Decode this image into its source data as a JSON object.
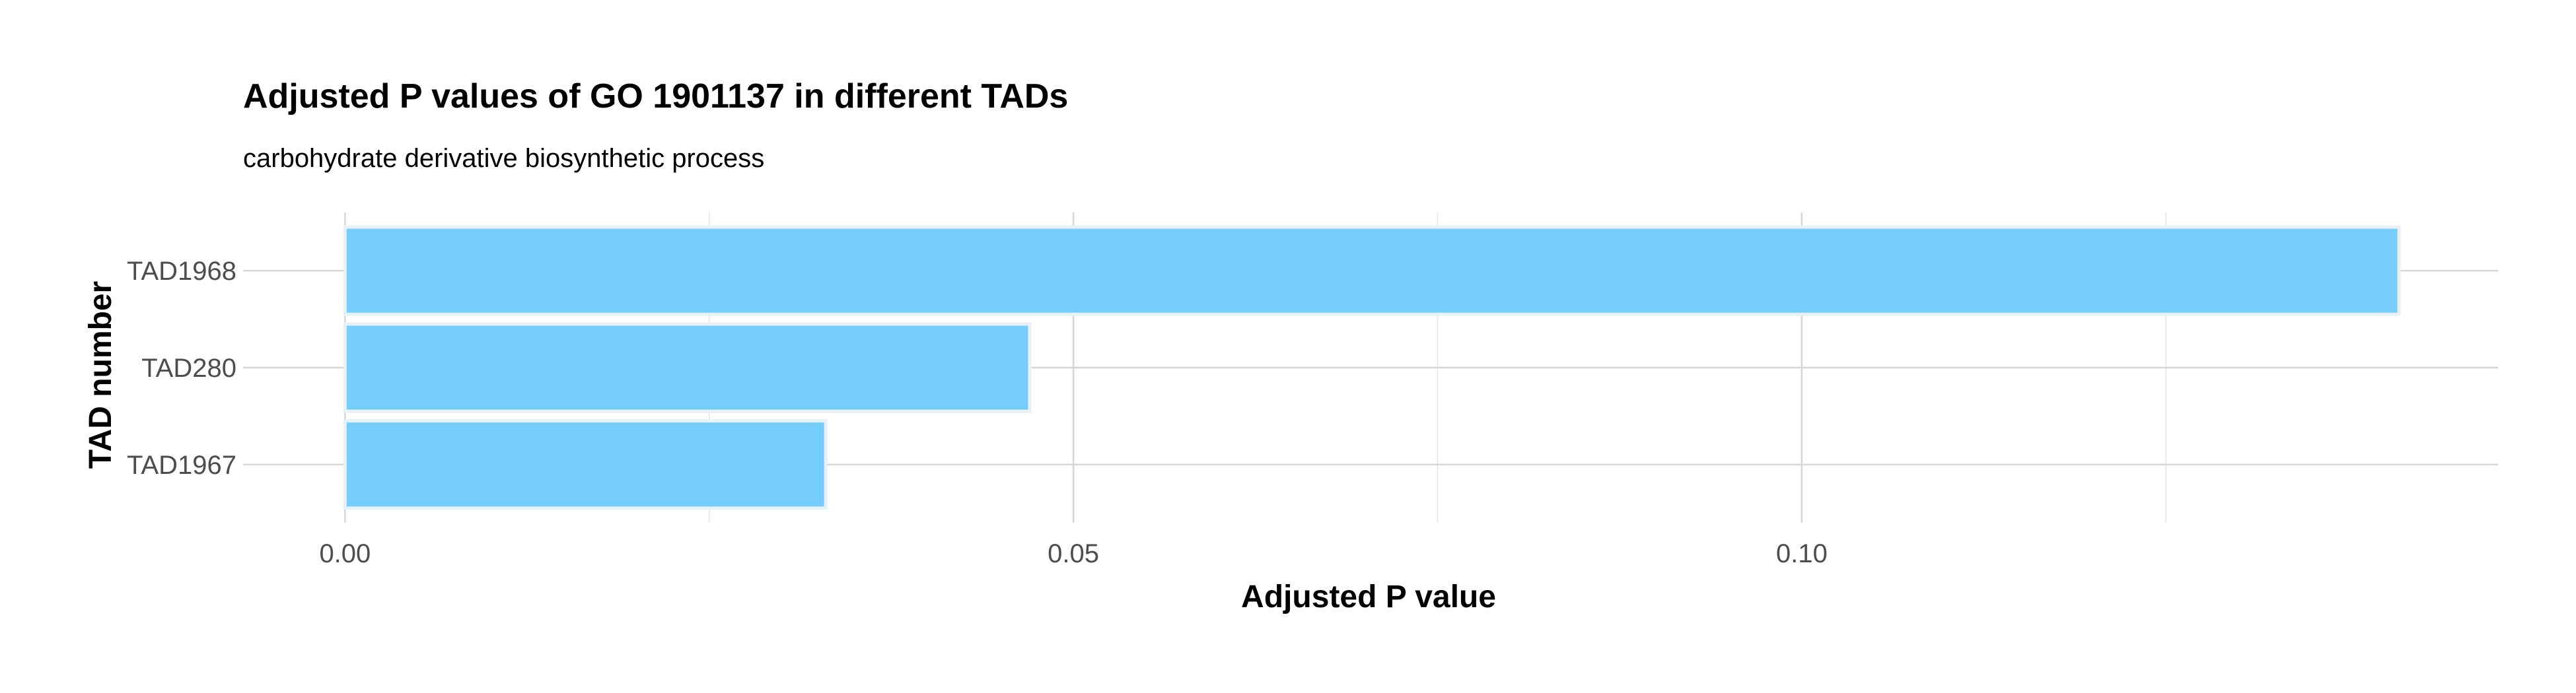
{
  "chart_data": {
    "type": "bar",
    "orientation": "horizontal",
    "title": "Adjusted P values of GO 1901137 in different TADs",
    "subtitle": "carbohydrate derivative biosynthetic process",
    "xlabel": "Adjusted P value",
    "ylabel": "TAD number",
    "categories": [
      "TAD1968",
      "TAD280",
      "TAD1967"
    ],
    "values": [
      0.141,
      0.047,
      0.033
    ],
    "xlim": [
      -0.007,
      0.1478
    ],
    "xticks": [
      0.0,
      0.05,
      0.1
    ],
    "xtick_labels": [
      "0.00",
      "0.05",
      "0.10"
    ],
    "grid": true,
    "legend": "none",
    "colors": {
      "bar_fill": "#74cdfb",
      "bar_stroke": "#e8f0f8",
      "grid": "#d6d6d6"
    }
  }
}
